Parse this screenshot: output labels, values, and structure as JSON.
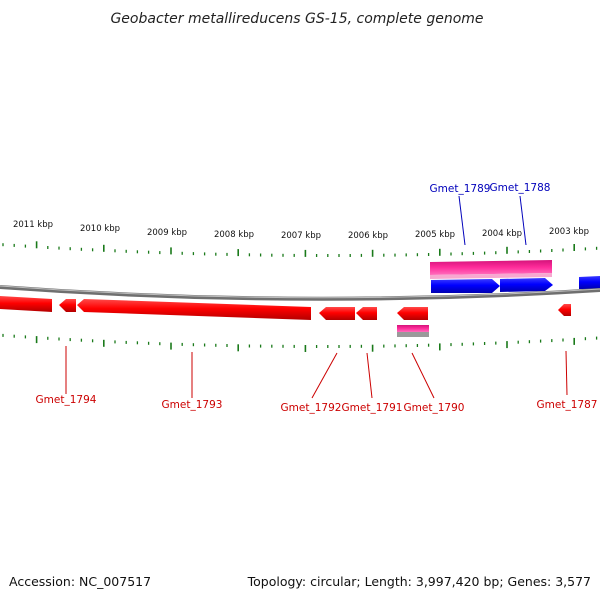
{
  "title": "Geobacter metallireducens GS-15, complete genome",
  "footer": {
    "accession": "Accession: NC_007517",
    "summary": "Topology: circular; Length: 3,997,420 bp; Genes: 3,577"
  },
  "colors": {
    "reverse_gene": "#ff0000",
    "forward_gene": "#0000ff",
    "rna_feature": "#ff2d9b",
    "tick": "#1a7a1a",
    "backbone": "#7a7a7a",
    "reverse_label": "#cc0000",
    "forward_label": "#0000bb"
  },
  "scale_labels": [
    "2011 kbp",
    "2010 kbp",
    "2009 kbp",
    "2008 kbp",
    "2007 kbp",
    "2006 kbp",
    "2005 kbp",
    "2004 kbp",
    "2003 kbp"
  ],
  "gene_labels": [
    {
      "id": "Gmet_1789",
      "strand": "forward"
    },
    {
      "id": "Gmet_1788",
      "strand": "forward"
    },
    {
      "id": "Gmet_1794",
      "strand": "reverse"
    },
    {
      "id": "Gmet_1793",
      "strand": "reverse"
    },
    {
      "id": "Gmet_1792",
      "strand": "reverse"
    },
    {
      "id": "Gmet_1791",
      "strand": "reverse"
    },
    {
      "id": "Gmet_1790",
      "strand": "reverse"
    },
    {
      "id": "Gmet_1787",
      "strand": "reverse"
    }
  ]
}
